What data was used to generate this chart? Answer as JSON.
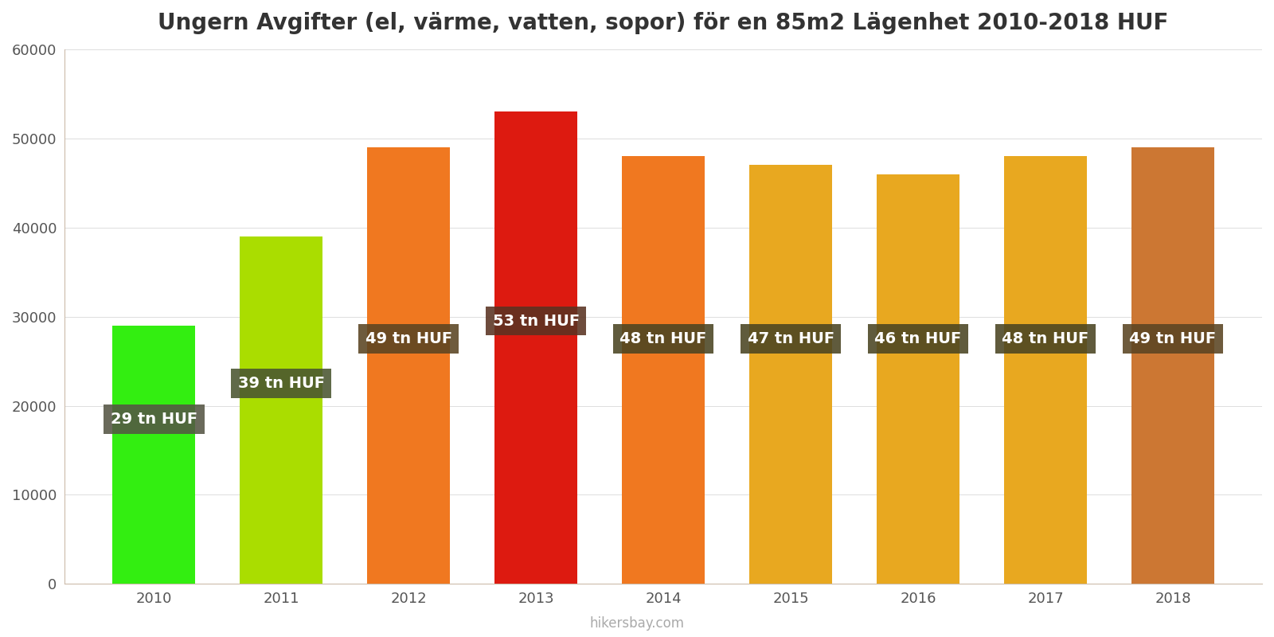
{
  "title": "Ungern Avgifter (el, värme, vatten, sopor) för en 85m2 Lägenhet 2010-2018 HUF",
  "years": [
    2010,
    2011,
    2012,
    2013,
    2014,
    2015,
    2016,
    2017,
    2018
  ],
  "values": [
    29000,
    39000,
    49000,
    53000,
    48000,
    47000,
    46000,
    48000,
    49000
  ],
  "labels": [
    "29 tn HUF",
    "39 tn HUF",
    "49 tn HUF",
    "53 tn HUF",
    "48 tn HUF",
    "47 tn HUF",
    "46 tn HUF",
    "48 tn HUF",
    "49 tn HUF"
  ],
  "bar_colors": [
    "#33ee11",
    "#aadd00",
    "#f07820",
    "#dd1a10",
    "#f07820",
    "#e8a820",
    "#e8a820",
    "#e8a820",
    "#cc7733"
  ],
  "label_y_positions": [
    18500,
    22500,
    27500,
    29500,
    27500,
    27500,
    27500,
    27500,
    27500
  ],
  "label_box_colors": [
    "#555544",
    "#4a5530",
    "#5a4422",
    "#5a3322",
    "#4a4422",
    "#4a4422",
    "#4a4422",
    "#4a4422",
    "#5a4422"
  ],
  "ylim": [
    0,
    60000
  ],
  "yticks": [
    0,
    10000,
    20000,
    30000,
    40000,
    50000,
    60000
  ],
  "label_text_color": "#ffffff",
  "label_fontsize": 14,
  "title_fontsize": 20,
  "tick_fontsize": 13,
  "bar_width": 0.65,
  "watermark": "hikersbay.com",
  "background_color": "#ffffff",
  "spine_color": "#ccbbaa",
  "grid_color": "#dddddd"
}
